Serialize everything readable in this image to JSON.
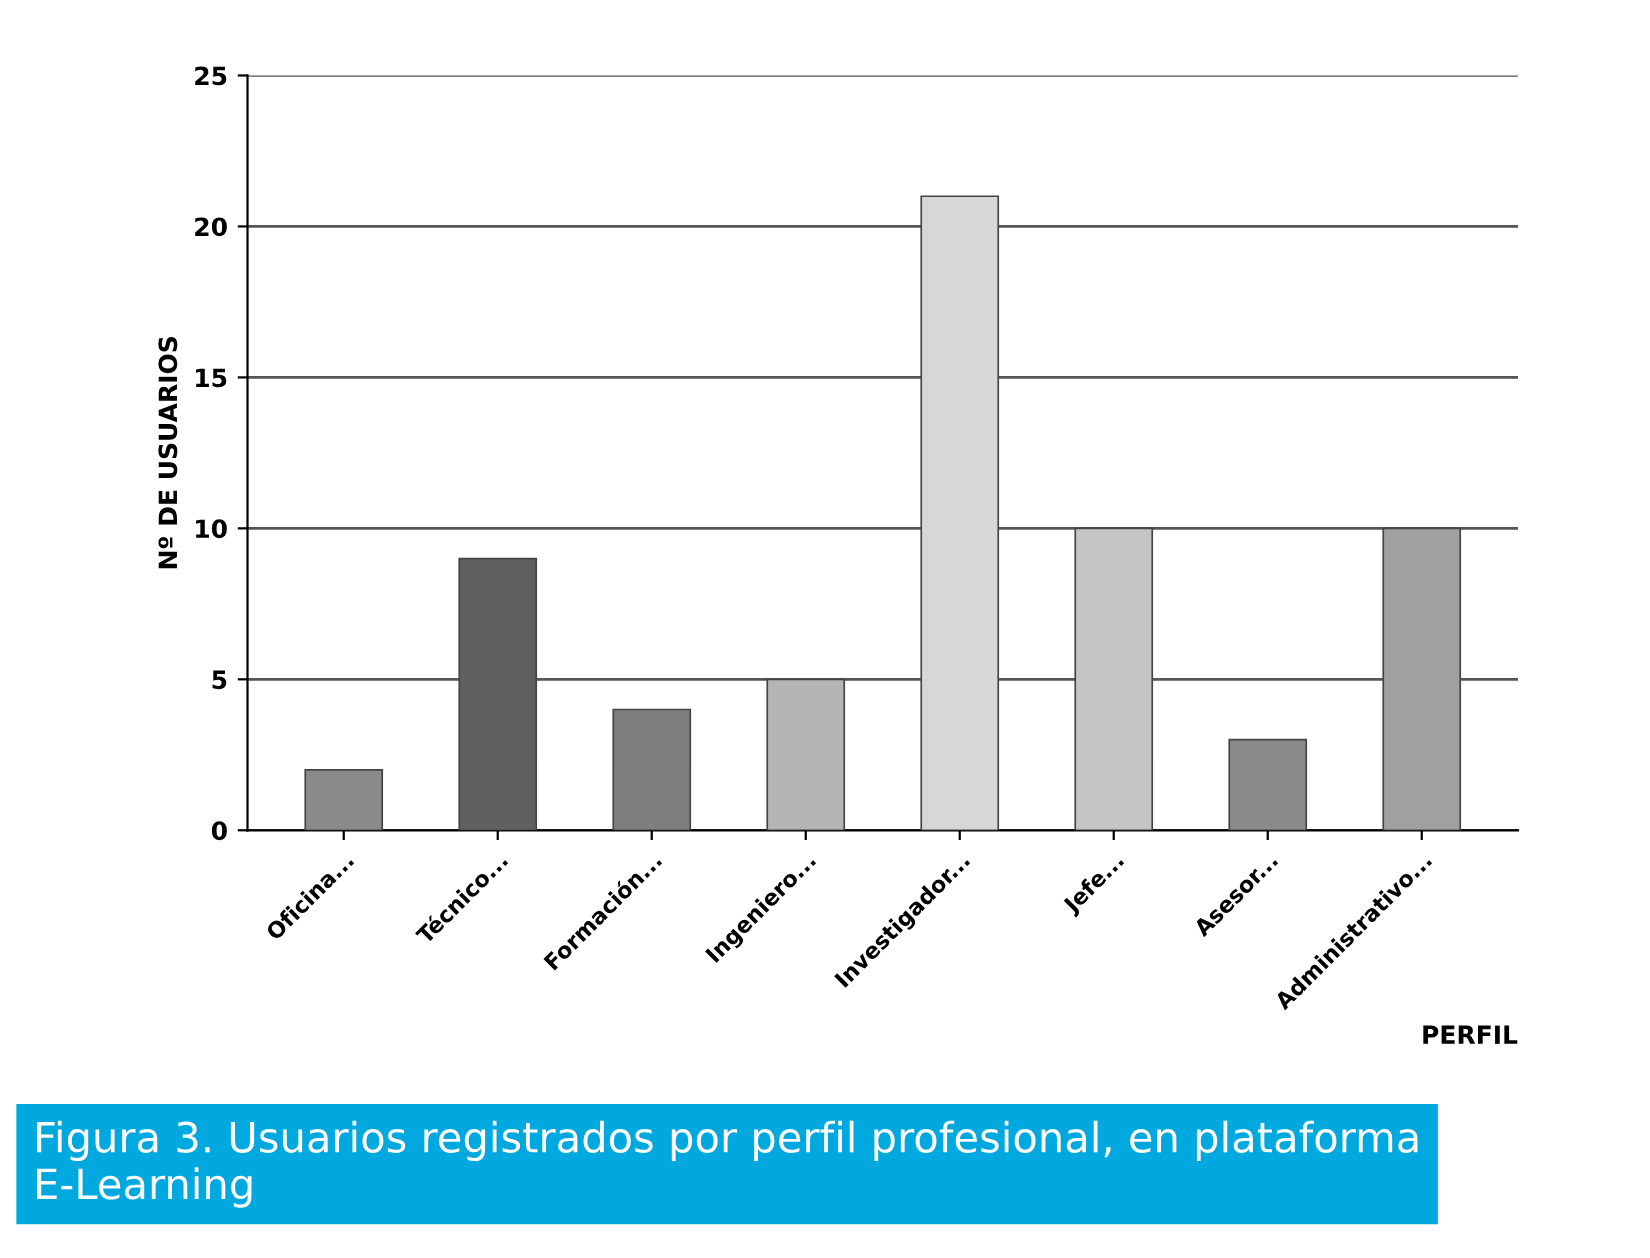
{
  "chart_data": {
    "type": "bar",
    "xlabel": "PERFIL",
    "ylabel": "Nº DE USUARIOS",
    "categories": [
      "Oficina...",
      "Técnico...",
      "Formación...",
      "Ingeniero...",
      "Investigador...",
      "Jefe...",
      "Asesor...",
      "Administrativo..."
    ],
    "values": [
      2,
      9,
      4,
      5,
      21,
      10,
      3,
      10
    ],
    "colors": [
      "#8a8a8a",
      "#5f6062",
      "#7e7e80",
      "#b4b5b7",
      "#d6d7d9",
      "#c4c5c7",
      "#8a8a8a",
      "#a0a0a2"
    ],
    "ylim": [
      0,
      25
    ],
    "yticks": [
      0,
      5,
      10,
      15,
      20,
      25
    ],
    "grid": "y",
    "annotations": [
      "Figura 3. Usuarios registrados por perfil profesional, en plataforma E-Learning"
    ]
  }
}
